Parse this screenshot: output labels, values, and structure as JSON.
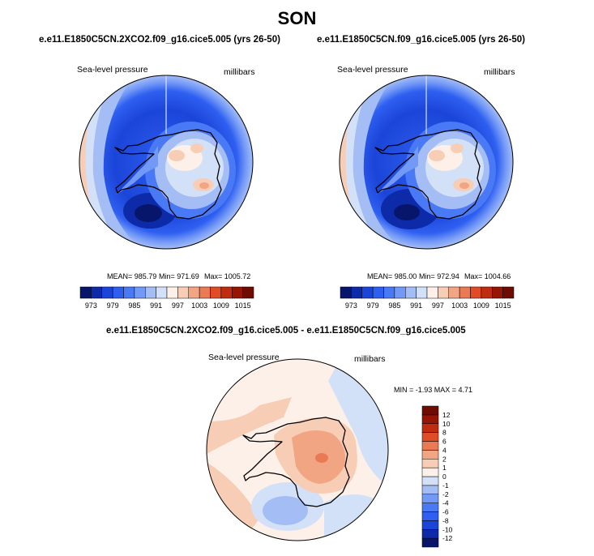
{
  "title": "SON",
  "chart_data": [
    {
      "type": "heatmap",
      "projection": "south-polar-stereographic",
      "title": "e.e11.E1850C5CN.2XCO2.f09_g16.cice5.005 (yrs 26-50)",
      "field": "Sea-level pressure",
      "units": "millibars",
      "stats": {
        "mean": "MEAN= 985.79",
        "min": "Min= 971.69",
        "max": "Max= 1005.72"
      },
      "colorbar": {
        "levels": [
          973,
          976,
          979,
          982,
          985,
          988,
          991,
          994,
          997,
          1000,
          1003,
          1006,
          1009,
          1012,
          1015
        ],
        "tick_labels": [
          "973",
          "979",
          "985",
          "991",
          "997",
          "1003",
          "1009",
          "1015"
        ],
        "colors": [
          "#07166b",
          "#0d2ba8",
          "#1b45d8",
          "#2e5ff0",
          "#4a79f5",
          "#7399f7",
          "#a5bdf5",
          "#d3e1f8",
          "#fdf0e8",
          "#f8cdb5",
          "#f2a583",
          "#ea7a54",
          "#e14c28",
          "#c02c10",
          "#961505",
          "#6e0c00"
        ]
      }
    },
    {
      "type": "heatmap",
      "projection": "south-polar-stereographic",
      "title": "e.e11.E1850C5CN.f09_g16.cice5.005 (yrs 26-50)",
      "field": "Sea-level pressure",
      "units": "millibars",
      "stats": {
        "mean": "MEAN= 985.00",
        "min": "Min= 972.94",
        "max": "Max= 1004.66"
      },
      "colorbar": {
        "levels": [
          973,
          976,
          979,
          982,
          985,
          988,
          991,
          994,
          997,
          1000,
          1003,
          1006,
          1009,
          1012,
          1015
        ],
        "tick_labels": [
          "973",
          "979",
          "985",
          "991",
          "997",
          "1003",
          "1009",
          "1015"
        ],
        "colors": [
          "#07166b",
          "#0d2ba8",
          "#1b45d8",
          "#2e5ff0",
          "#4a79f5",
          "#7399f7",
          "#a5bdf5",
          "#d3e1f8",
          "#fdf0e8",
          "#f8cdb5",
          "#f2a583",
          "#ea7a54",
          "#e14c28",
          "#c02c10",
          "#961505",
          "#6e0c00"
        ]
      }
    },
    {
      "type": "heatmap",
      "projection": "south-polar-stereographic",
      "title": "e.e11.E1850C5CN.2XCO2.f09_g16.cice5.005 - e.e11.E1850C5CN.f09_g16.cice5.005",
      "field": "Sea-level pressure",
      "units": "millibars",
      "stats": {
        "minmax": "MIN = -1.93 MAX = 4.71"
      },
      "colorbar": {
        "orientation": "vertical",
        "levels": [
          -12,
          -10,
          -8,
          -6,
          -4,
          -2,
          -1,
          0,
          1,
          2,
          4,
          6,
          8,
          10,
          12
        ],
        "tick_labels": [
          "-12",
          "-10",
          "-8",
          "-6",
          "-4",
          "-2",
          "-1",
          "0",
          "1",
          "2",
          "4",
          "6",
          "8",
          "10",
          "12"
        ],
        "colors": [
          "#07166b",
          "#0d2ba8",
          "#1b45d8",
          "#2e5ff0",
          "#4a79f5",
          "#7399f7",
          "#a5bdf5",
          "#d3e1f8",
          "#fdf0e8",
          "#f8cdb5",
          "#f2a583",
          "#ea7a54",
          "#e14c28",
          "#c02c10",
          "#961505",
          "#6e0c00"
        ]
      }
    }
  ]
}
